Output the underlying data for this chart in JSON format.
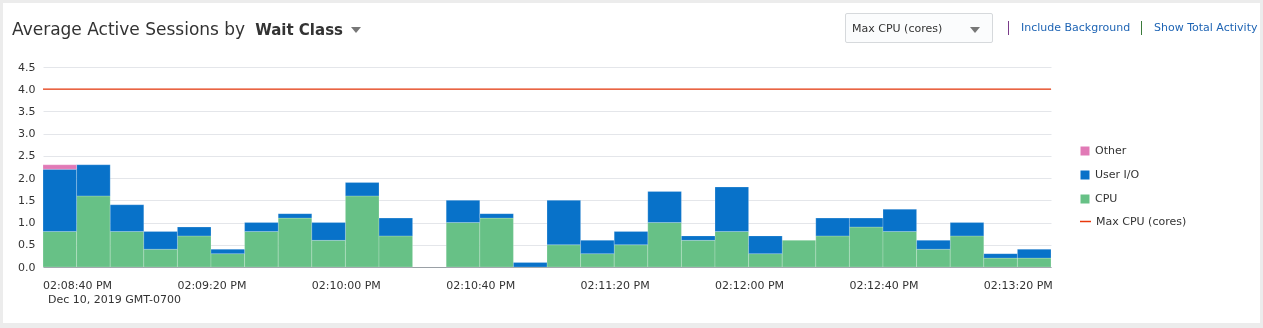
{
  "chart_data": {
    "type": "bar",
    "stacked": true,
    "title": "Average Active Sessions by",
    "subtitle": "Wait Class",
    "categories": [
      "02:08:40 PM",
      null,
      null,
      null,
      "02:09:20 PM",
      null,
      null,
      null,
      "02:10:00 PM",
      null,
      null,
      null,
      "02:10:40 PM",
      null,
      null,
      null,
      "02:11:20 PM",
      null,
      null,
      null,
      "02:12:00 PM",
      null,
      null,
      null,
      "02:12:40 PM",
      null,
      null,
      null,
      "02:13:20 PM",
      null
    ],
    "series": [
      {
        "name": "CPU",
        "color": "#67c186",
        "values": [
          0.8,
          1.6,
          0.8,
          0.4,
          0.7,
          0.3,
          0.8,
          1.1,
          0.6,
          1.6,
          0.7,
          null,
          1.0,
          1.1,
          null,
          0.5,
          0.3,
          0.5,
          1.0,
          0.6,
          0.8,
          0.3,
          0.6,
          0.7,
          0.9,
          0.8,
          0.4,
          0.7,
          0.2,
          0.2
        ]
      },
      {
        "name": "User I/O",
        "color": "#0872c9",
        "values": [
          1.4,
          0.7,
          0.6,
          0.4,
          0.2,
          0.1,
          0.2,
          0.1,
          0.4,
          0.3,
          0.4,
          null,
          0.5,
          0.1,
          0.1,
          1.0,
          0.3,
          0.3,
          0.7,
          0.1,
          1.0,
          0.4,
          null,
          0.4,
          0.2,
          0.5,
          0.2,
          0.3,
          0.1,
          0.2
        ]
      },
      {
        "name": "Other",
        "color": "#e17ab6",
        "values": [
          0.1,
          null,
          null,
          null,
          null,
          null,
          null,
          null,
          null,
          null,
          null,
          null,
          null,
          null,
          null,
          null,
          null,
          null,
          null,
          null,
          null,
          null,
          null,
          null,
          null,
          null,
          null,
          null,
          null,
          null
        ]
      }
    ],
    "ylim": [
      0,
      4.5
    ],
    "yticks": [
      {
        "value": 0,
        "label": "0.0"
      },
      {
        "value": 0.5,
        "label": "0.5"
      },
      {
        "value": 1,
        "label": "1.0"
      },
      {
        "value": 1.5,
        "label": "1.5"
      },
      {
        "value": 2,
        "label": "2.0"
      },
      {
        "value": 2.5,
        "label": "2.5"
      },
      {
        "value": 3,
        "label": "3.0"
      },
      {
        "value": 3.5,
        "label": "3.5"
      },
      {
        "value": 4,
        "label": "4.0"
      },
      {
        "value": 4.5,
        "label": "4.5"
      }
    ],
    "grid": "y",
    "legend": "right",
    "ref_lines": [
      {
        "axis": "y",
        "value": 4,
        "label": "Max CPU (cores)",
        "color": "#e8380c"
      }
    ],
    "annotations": [
      "Max CPU (cores)",
      "Include Background",
      "Show Total Activity",
      "Dec 10, 2019 GMT-0700"
    ]
  }
}
